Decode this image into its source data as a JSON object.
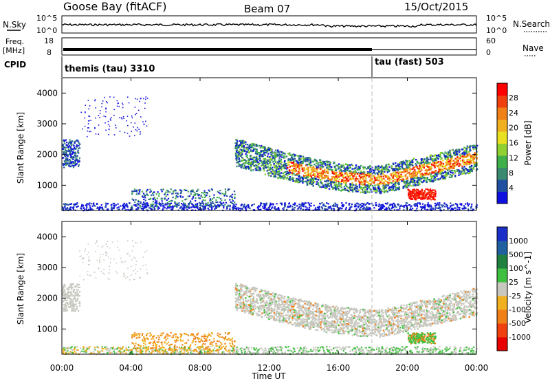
{
  "header": {
    "station": "Goose Bay (fitACF)",
    "beam": "Beam 07",
    "date": "15/Oct/2015"
  },
  "status_panels": {
    "nsky_label": "N.Sky",
    "nsky_ticks": [
      "10^5",
      "10^0"
    ],
    "nsearch_label": "N.Search",
    "freq_label_1": "Freq.",
    "freq_label_2": "[MHz]",
    "freq_ticks": [
      "18",
      "8"
    ],
    "nave_label": "Nave",
    "nave_ticks": [
      "60",
      "0"
    ],
    "cpid_label": "CPID",
    "cpid_1": "themis (tau) 3310",
    "cpid_2": "tau (fast) 503"
  },
  "chart_data": [
    {
      "type": "heatmap",
      "name": "power",
      "ylabel": "Slant Range [km]",
      "yticks": [
        "4000",
        "3000",
        "2000",
        "1000"
      ],
      "ylim": [
        180,
        4500
      ],
      "colorbar_label": "Power [dB]",
      "colorbar_ticks": [
        "28",
        "24",
        "20",
        "16",
        "12",
        "8",
        "4"
      ],
      "colors": [
        "#1010e0",
        "#2050a0",
        "#3a8a70",
        "#3fb04a",
        "#90d030",
        "#e8e020",
        "#f0b020",
        "#f08018",
        "#f04010",
        "#ff0000"
      ],
      "grid": false
    },
    {
      "type": "heatmap",
      "name": "velocity",
      "ylabel": "Slant Range [km]",
      "yticks": [
        "4000",
        "3000",
        "2000",
        "1000"
      ],
      "ylim": [
        180,
        4500
      ],
      "colorbar_label": "Velocity [m s^-1]",
      "colorbar_ticks": [
        "1000",
        "500",
        "100",
        "25",
        "-25",
        "-100",
        "-500",
        "-1000"
      ],
      "colors": [
        "#1a2fc8",
        "#2060a0",
        "#208040",
        "#40c040",
        "#c8c8c0",
        "#f0b020",
        "#f08018",
        "#f04010",
        "#e80000"
      ],
      "ground_scatter_color": "#c8c8c0",
      "grid": false
    }
  ],
  "time_axis": {
    "xlabel": "Time UT",
    "ticks": [
      "00:00",
      "04:00",
      "08:00",
      "12:00",
      "16:00",
      "20:00",
      "00:00"
    ],
    "range_hours": [
      0,
      24
    ],
    "cpid_change_hour": 18
  }
}
